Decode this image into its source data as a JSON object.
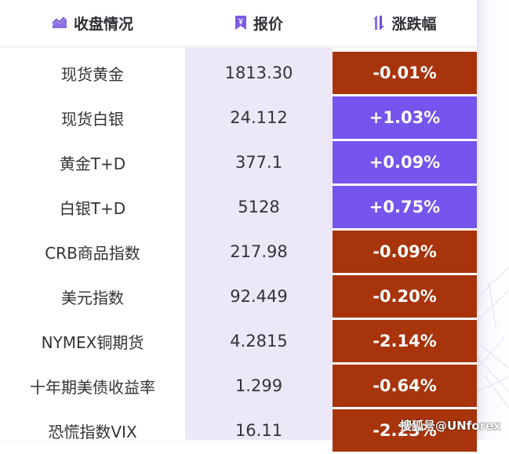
{
  "header": {
    "name_label": "收盘情况",
    "name_icon": "chart-trend-icon",
    "price_label": "报价",
    "price_icon": "bookmark-yuan-icon",
    "change_label": "涨跌幅",
    "change_icon": "up-down-arrows-icon"
  },
  "colors": {
    "accent": "#7b5ce6",
    "up": "#7654ee",
    "down": "#a8340c",
    "price_column_bg": "#ece8f7"
  },
  "rows": [
    {
      "name": "现货黄金",
      "price": "1813.30",
      "change": "-0.01%",
      "direction": "down"
    },
    {
      "name": "现货白银",
      "price": "24.112",
      "change": "+1.03%",
      "direction": "up"
    },
    {
      "name": "黄金T+D",
      "price": "377.1",
      "change": "+0.09%",
      "direction": "up"
    },
    {
      "name": "白银T+D",
      "price": "5128",
      "change": "+0.75%",
      "direction": "up"
    },
    {
      "name": "CRB商品指数",
      "price": "217.98",
      "change": "-0.09%",
      "direction": "down"
    },
    {
      "name": "美元指数",
      "price": "92.449",
      "change": "-0.20%",
      "direction": "down"
    },
    {
      "name": "NYMEX铜期货",
      "price": "4.2815",
      "change": "-2.14%",
      "direction": "down"
    },
    {
      "name": "十年期美债收益率",
      "price": "1.299",
      "change": "-0.64%",
      "direction": "down"
    },
    {
      "name": "恐慌指数VIX",
      "price": "16.11",
      "change": "-2.23%",
      "direction": "down"
    }
  ],
  "watermark": "搜狐号@UNforex"
}
